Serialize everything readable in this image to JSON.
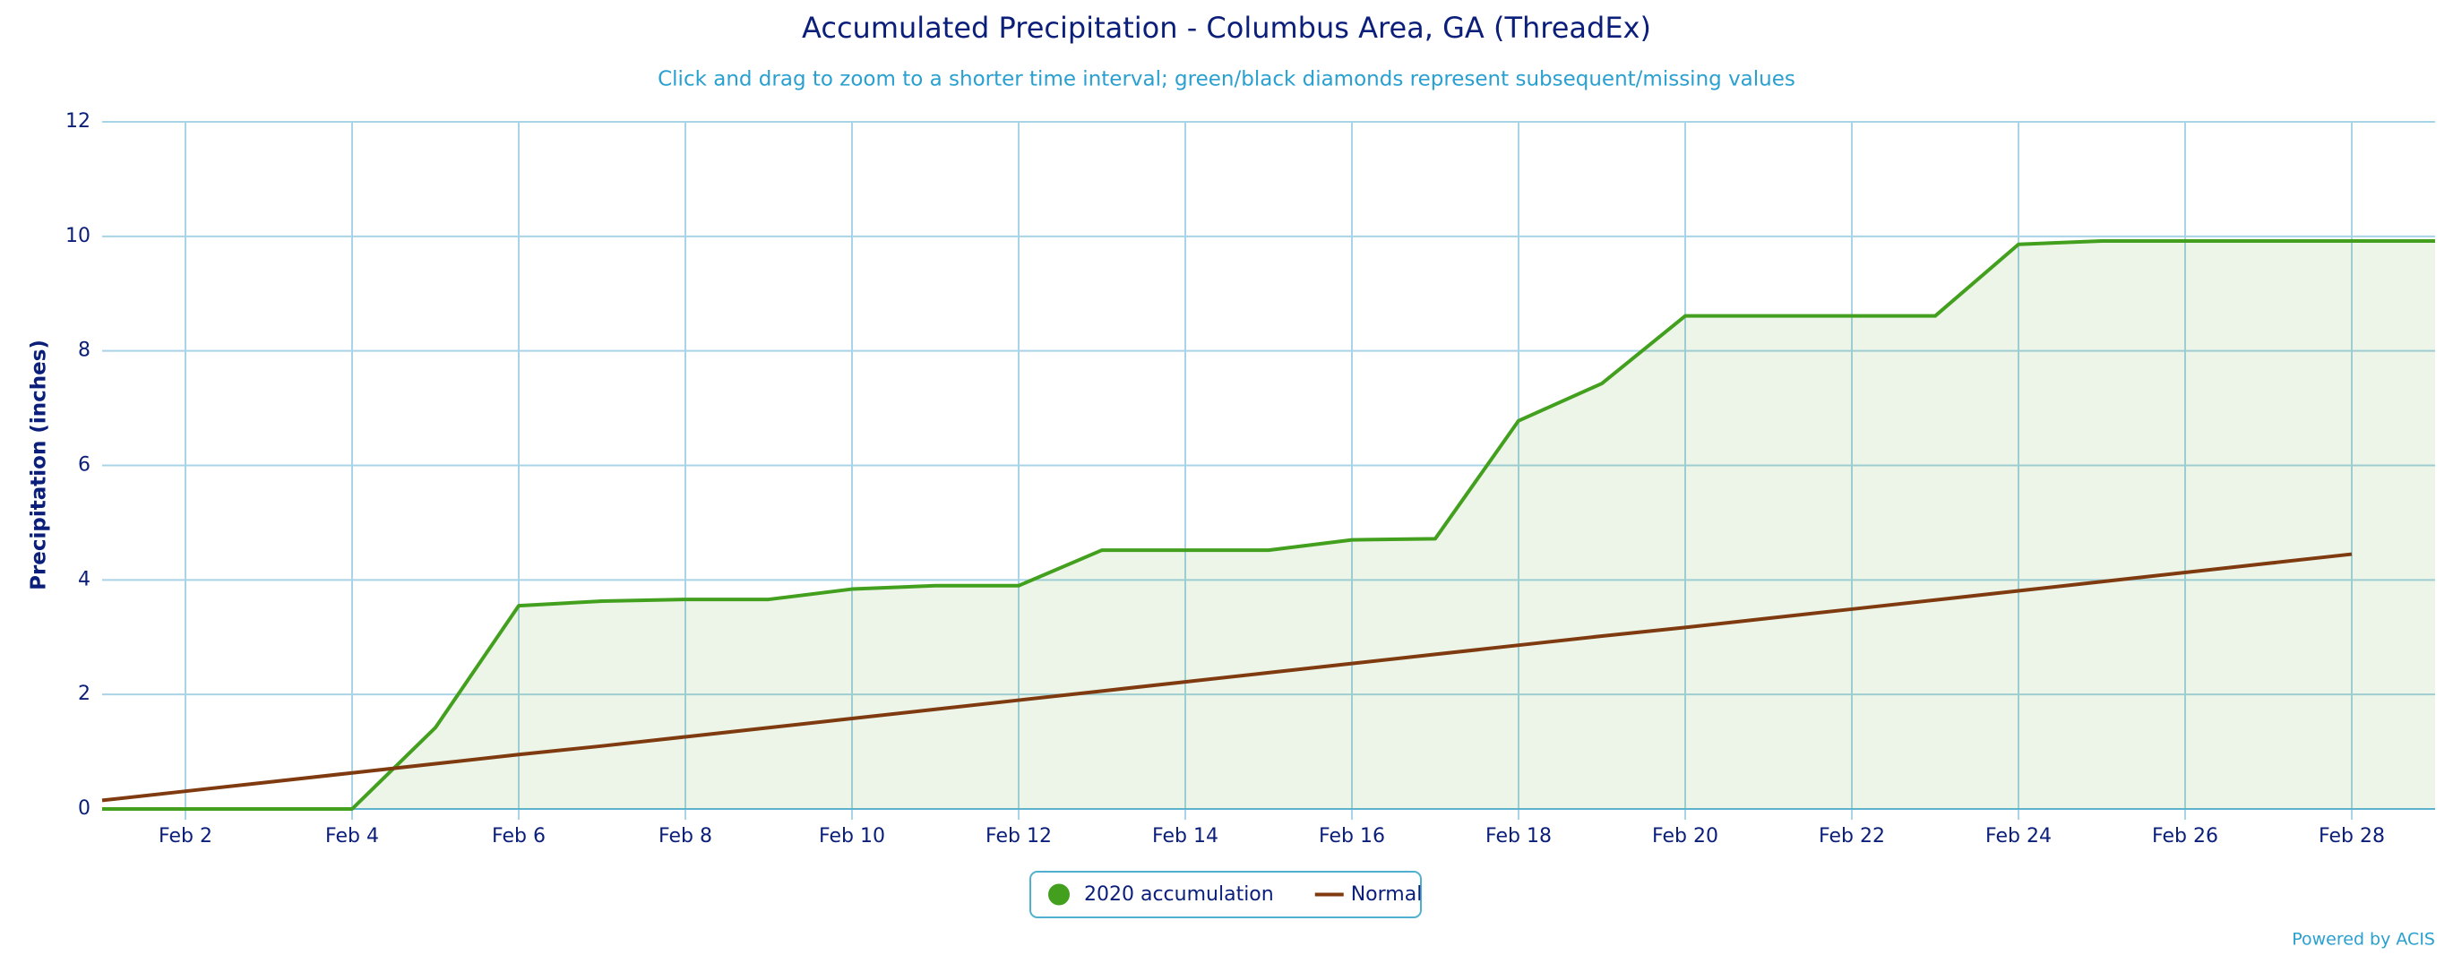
{
  "chart_data": {
    "type": "line",
    "title": "Accumulated Precipitation - Columbus Area, GA (ThreadEx)",
    "subtitle": "Click and drag to zoom to a shorter time interval; green/black diamonds represent subsequent/missing values",
    "ylabel": "Precipitation (inches)",
    "credit": "Powered by ACIS",
    "categories": [
      null,
      "Feb 2",
      null,
      "Feb 4",
      null,
      "Feb 6",
      null,
      "Feb 8",
      null,
      "Feb 10",
      null,
      "Feb 12",
      null,
      "Feb 14",
      null,
      "Feb 16",
      null,
      "Feb 18",
      null,
      "Feb 20",
      null,
      "Feb 22",
      null,
      "Feb 24",
      null,
      "Feb 26",
      null,
      "Feb 28",
      null
    ],
    "series": [
      {
        "name": "2020 accumulation",
        "color": "#43a01e",
        "fill": true,
        "values": [
          0,
          0,
          0,
          0,
          1.42,
          3.55,
          3.63,
          3.66,
          3.66,
          3.84,
          3.9,
          3.9,
          4.52,
          4.52,
          4.52,
          4.7,
          4.72,
          6.78,
          7.43,
          8.61,
          8.61,
          8.61,
          8.61,
          9.86,
          9.92,
          9.92,
          9.92,
          9.92,
          9.92
        ]
      },
      {
        "name": "Normal",
        "color": "#7f3a10",
        "fill": false,
        "values": [
          0.15,
          0.31,
          0.47,
          0.63,
          0.79,
          0.95,
          1.1,
          1.26,
          1.42,
          1.58,
          1.74,
          1.9,
          2.06,
          2.22,
          2.38,
          2.54,
          2.7,
          2.86,
          3.02,
          3.17,
          3.33,
          3.49,
          3.65,
          3.81,
          3.97,
          4.13,
          4.29,
          4.45,
          null
        ]
      }
    ],
    "ylim": [
      0,
      12
    ],
    "yticks": [
      0,
      2,
      4,
      6,
      8,
      10,
      12
    ],
    "grid": true,
    "legend": "bottom"
  }
}
